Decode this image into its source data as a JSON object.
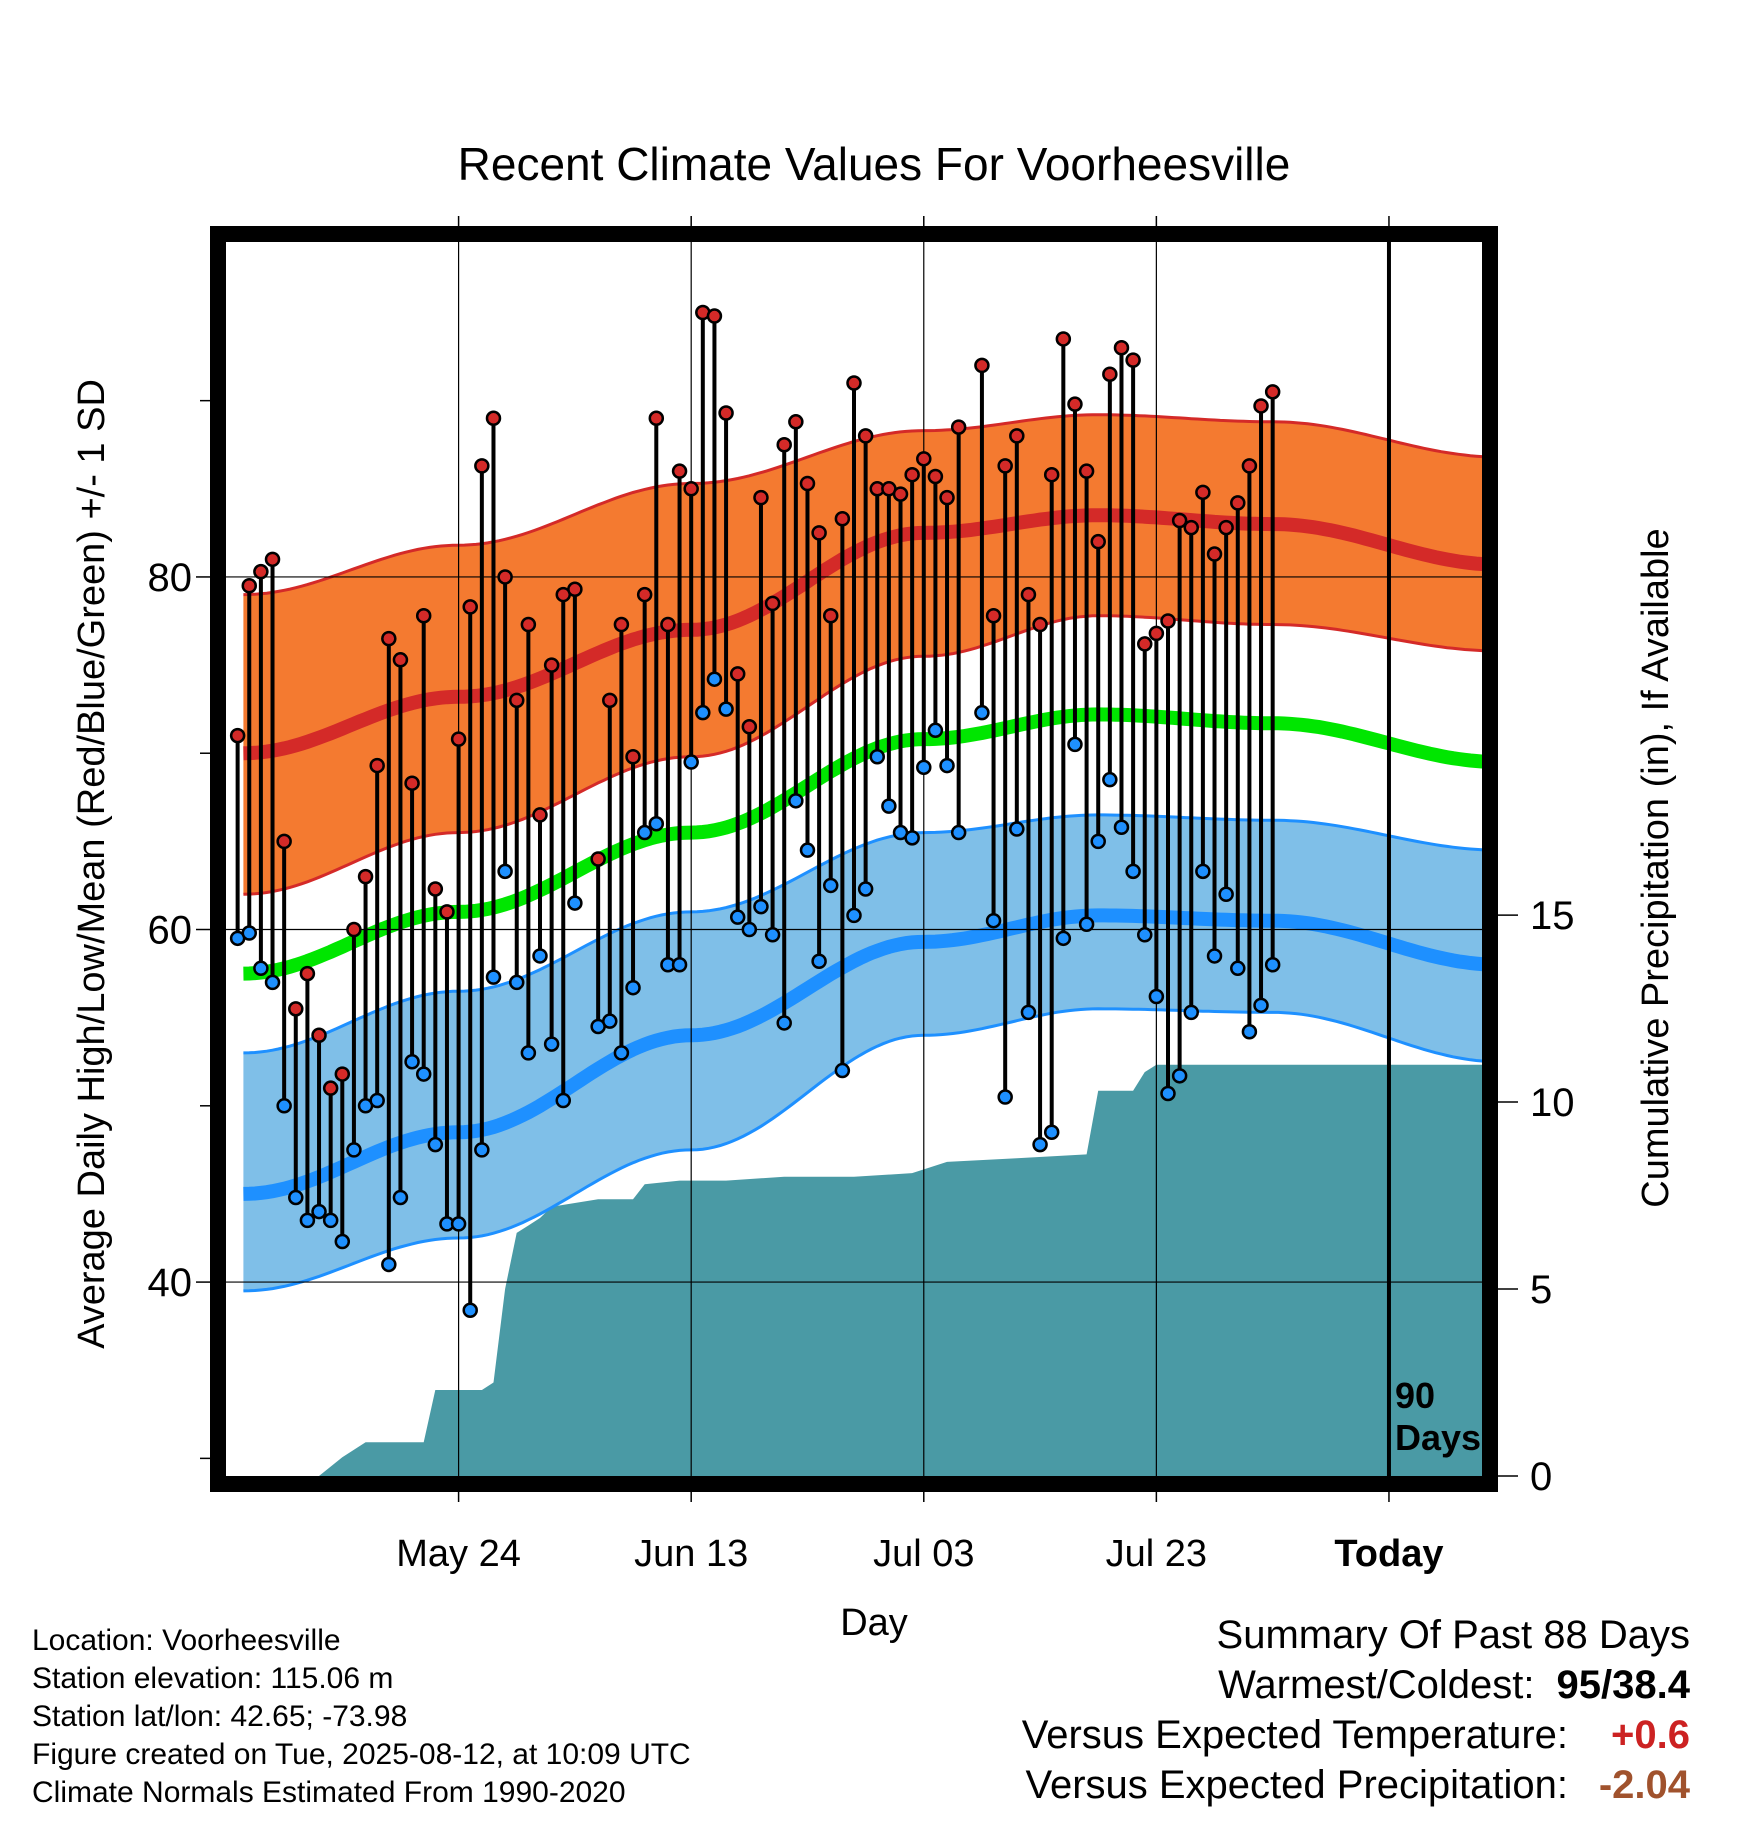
{
  "chart_data": {
    "type": "line",
    "title": "Recent Climate Values For Voorheesville",
    "xlabel": "Day",
    "ylabel_left": "Average Daily High/Low/Mean (Red/Blue/Green) +/- 1 SD",
    "ylabel_right": "Cumulative Precipitation (in), If Available",
    "y_left_range": [
      29,
      99
    ],
    "y_left_ticks": [
      "40",
      "60",
      "80"
    ],
    "y_right_range": [
      0,
      33
    ],
    "y_right_ticks": [
      "0",
      "5",
      "10",
      "15"
    ],
    "x_range": [
      -100,
      8
    ],
    "x_ticks": [
      {
        "label": "May 24",
        "day": -80
      },
      {
        "label": "Jun 13",
        "day": -60
      },
      {
        "label": "Jul 03",
        "day": -40
      },
      {
        "label": "Jul 23",
        "day": -20
      },
      {
        "label": "Today",
        "day": 0
      }
    ],
    "today_marker": {
      "day": 0,
      "label_line1": "90",
      "label_line2": "Days"
    },
    "normal_high": [
      {
        "day": -98.5,
        "value": 70.0
      },
      {
        "day": -80,
        "value": 73.2
      },
      {
        "day": -60,
        "value": 77.0
      },
      {
        "day": -40,
        "value": 82.5
      },
      {
        "day": -25,
        "value": 83.5
      },
      {
        "day": -10,
        "value": 83.0
      },
      {
        "day": 9.5,
        "value": 80.7
      }
    ],
    "normal_high_sd_upper": [
      {
        "day": -98.5,
        "value": 79.0
      },
      {
        "day": -80,
        "value": 81.8
      },
      {
        "day": -60,
        "value": 85.3
      },
      {
        "day": -40,
        "value": 88.3
      },
      {
        "day": -25,
        "value": 89.2
      },
      {
        "day": -10,
        "value": 88.8
      },
      {
        "day": 9.5,
        "value": 86.8
      }
    ],
    "normal_high_sd_lower": [
      {
        "day": -98.5,
        "value": 62.0
      },
      {
        "day": -80,
        "value": 65.5
      },
      {
        "day": -60,
        "value": 69.8
      },
      {
        "day": -40,
        "value": 75.5
      },
      {
        "day": -25,
        "value": 77.8
      },
      {
        "day": -10,
        "value": 77.3
      },
      {
        "day": 9.5,
        "value": 75.8
      }
    ],
    "normal_mean": [
      {
        "day": -98.5,
        "value": 57.5
      },
      {
        "day": -80,
        "value": 61.0
      },
      {
        "day": -60,
        "value": 65.5
      },
      {
        "day": -40,
        "value": 70.8
      },
      {
        "day": -25,
        "value": 72.2
      },
      {
        "day": -10,
        "value": 71.7
      },
      {
        "day": 9.5,
        "value": 69.5
      }
    ],
    "normal_low": [
      {
        "day": -98.5,
        "value": 45.0
      },
      {
        "day": -80,
        "value": 48.5
      },
      {
        "day": -60,
        "value": 54.0
      },
      {
        "day": -40,
        "value": 59.3
      },
      {
        "day": -25,
        "value": 60.8
      },
      {
        "day": -10,
        "value": 60.5
      },
      {
        "day": 9.5,
        "value": 58.0
      }
    ],
    "normal_low_sd_upper": [
      {
        "day": -98.5,
        "value": 53.0
      },
      {
        "day": -80,
        "value": 56.5
      },
      {
        "day": -60,
        "value": 61.0
      },
      {
        "day": -40,
        "value": 65.5
      },
      {
        "day": -25,
        "value": 66.5
      },
      {
        "day": -10,
        "value": 66.2
      },
      {
        "day": 9.5,
        "value": 64.5
      }
    ],
    "normal_low_sd_lower": [
      {
        "day": -98.5,
        "value": 39.5
      },
      {
        "day": -80,
        "value": 42.5
      },
      {
        "day": -60,
        "value": 47.5
      },
      {
        "day": -40,
        "value": 54.0
      },
      {
        "day": -25,
        "value": 55.5
      },
      {
        "day": -10,
        "value": 55.3
      },
      {
        "day": 9.5,
        "value": 52.5
      }
    ],
    "daily": [
      {
        "day": -99,
        "high": 71.0,
        "low": 59.5
      },
      {
        "day": -98,
        "high": 79.5,
        "low": 59.8
      },
      {
        "day": -97,
        "high": 80.3,
        "low": 57.8
      },
      {
        "day": -96,
        "high": 81.0,
        "low": 57.0
      },
      {
        "day": -95,
        "high": 65.0,
        "low": 50.0
      },
      {
        "day": -94,
        "high": 55.5,
        "low": 44.8
      },
      {
        "day": -93,
        "high": 57.5,
        "low": 43.5
      },
      {
        "day": -92,
        "high": 54.0,
        "low": 44.0
      },
      {
        "day": -91,
        "high": 51.0,
        "low": 43.5
      },
      {
        "day": -90,
        "high": 51.8,
        "low": 42.3
      },
      {
        "day": -89,
        "high": 60.0,
        "low": 47.5
      },
      {
        "day": -88,
        "high": 63.0,
        "low": 50.0
      },
      {
        "day": -87,
        "high": 69.3,
        "low": 50.3
      },
      {
        "day": -86,
        "high": 76.5,
        "low": 41.0
      },
      {
        "day": -85,
        "high": 75.3,
        "low": 44.8
      },
      {
        "day": -84,
        "high": 68.3,
        "low": 52.5
      },
      {
        "day": -83,
        "high": 77.8,
        "low": 51.8
      },
      {
        "day": -82,
        "high": 62.3,
        "low": 47.8
      },
      {
        "day": -81,
        "high": 61.0,
        "low": 43.3
      },
      {
        "day": -80,
        "high": 70.8,
        "low": 43.3
      },
      {
        "day": -79,
        "high": 78.3,
        "low": 38.4
      },
      {
        "day": -78,
        "high": 86.3,
        "low": 47.5
      },
      {
        "day": -77,
        "high": 89.0,
        "low": 57.3
      },
      {
        "day": -76,
        "high": 80.0,
        "low": 63.3
      },
      {
        "day": -75,
        "high": 73.0,
        "low": 57.0
      },
      {
        "day": -74,
        "high": 77.3,
        "low": 53.0
      },
      {
        "day": -73,
        "high": 66.5,
        "low": 58.5
      },
      {
        "day": -72,
        "high": 75.0,
        "low": 53.5
      },
      {
        "day": -71,
        "high": 79.0,
        "low": 50.3
      },
      {
        "day": -70,
        "high": 79.3,
        "low": 61.5
      },
      {
        "day": -68,
        "high": 64.0,
        "low": 54.5
      },
      {
        "day": -67,
        "high": 73.0,
        "low": 54.8
      },
      {
        "day": -66,
        "high": 77.3,
        "low": 53.0
      },
      {
        "day": -65,
        "high": 69.8,
        "low": 56.7
      },
      {
        "day": -64,
        "high": 79.0,
        "low": 65.5
      },
      {
        "day": -63,
        "high": 89.0,
        "low": 66.0
      },
      {
        "day": -62,
        "high": 77.3,
        "low": 58.0
      },
      {
        "day": -61,
        "high": 86.0,
        "low": 58.0
      },
      {
        "day": -60,
        "high": 85.0,
        "low": 69.5
      },
      {
        "day": -59,
        "high": 95.0,
        "low": 72.3
      },
      {
        "day": -58,
        "high": 94.8,
        "low": 74.2
      },
      {
        "day": -57,
        "high": 89.3,
        "low": 72.5
      },
      {
        "day": -56,
        "high": 74.5,
        "low": 60.7
      },
      {
        "day": -55,
        "high": 71.5,
        "low": 60.0
      },
      {
        "day": -54,
        "high": 84.5,
        "low": 61.3
      },
      {
        "day": -53,
        "high": 78.5,
        "low": 59.7
      },
      {
        "day": -52,
        "high": 87.5,
        "low": 54.7
      },
      {
        "day": -51,
        "high": 88.8,
        "low": 67.3
      },
      {
        "day": -50,
        "high": 85.3,
        "low": 64.5
      },
      {
        "day": -49,
        "high": 82.5,
        "low": 58.2
      },
      {
        "day": -48,
        "high": 77.8,
        "low": 62.5
      },
      {
        "day": -47,
        "high": 83.3,
        "low": 52.0
      },
      {
        "day": -46,
        "high": 91.0,
        "low": 60.8
      },
      {
        "day": -45,
        "high": 88.0,
        "low": 62.3
      },
      {
        "day": -44,
        "high": 85.0,
        "low": 69.8
      },
      {
        "day": -43,
        "high": 85.0,
        "low": 67.0
      },
      {
        "day": -42,
        "high": 84.7,
        "low": 65.5
      },
      {
        "day": -41,
        "high": 85.8,
        "low": 65.2
      },
      {
        "day": -40,
        "high": 86.7,
        "low": 69.2
      },
      {
        "day": -39,
        "high": 85.7,
        "low": 71.3
      },
      {
        "day": -38,
        "high": 84.5,
        "low": 69.3
      },
      {
        "day": -37,
        "high": 88.5,
        "low": 65.5
      },
      {
        "day": -35,
        "high": 92.0,
        "low": 72.3
      },
      {
        "day": -34,
        "high": 77.8,
        "low": 60.5
      },
      {
        "day": -33,
        "high": 86.3,
        "low": 50.5
      },
      {
        "day": -32,
        "high": 88.0,
        "low": 65.7
      },
      {
        "day": -31,
        "high": 79.0,
        "low": 55.3
      },
      {
        "day": -30,
        "high": 77.3,
        "low": 47.8
      },
      {
        "day": -29,
        "high": 85.8,
        "low": 48.5
      },
      {
        "day": -28,
        "high": 93.5,
        "low": 59.5
      },
      {
        "day": -27,
        "high": 89.8,
        "low": 70.5
      },
      {
        "day": -26,
        "high": 86.0,
        "low": 60.3
      },
      {
        "day": -25,
        "high": 82.0,
        "low": 65.0
      },
      {
        "day": -24,
        "high": 91.5,
        "low": 68.5
      },
      {
        "day": -23,
        "high": 93.0,
        "low": 65.8
      },
      {
        "day": -22,
        "high": 92.3,
        "low": 63.3
      },
      {
        "day": -21,
        "high": 76.2,
        "low": 59.7
      },
      {
        "day": -20,
        "high": 76.8,
        "low": 56.2
      },
      {
        "day": -19,
        "high": 77.5,
        "low": 50.7
      },
      {
        "day": -18,
        "high": 83.2,
        "low": 51.7
      },
      {
        "day": -17,
        "high": 82.8,
        "low": 55.3
      },
      {
        "day": -16,
        "high": 84.8,
        "low": 63.3
      },
      {
        "day": -15,
        "high": 81.3,
        "low": 58.5
      },
      {
        "day": -14,
        "high": 82.8,
        "low": 62.0
      },
      {
        "day": -13,
        "high": 84.2,
        "low": 57.8
      },
      {
        "day": -12,
        "high": 86.3,
        "low": 54.2
      },
      {
        "day": -11,
        "high": 89.7,
        "low": 55.7
      },
      {
        "day": -10,
        "high": 90.5,
        "low": 58.0
      }
    ],
    "cumulative_precip": [
      {
        "day": -99,
        "value": 0
      },
      {
        "day": -92,
        "value": 0
      },
      {
        "day": -90,
        "value": 0.5
      },
      {
        "day": -88,
        "value": 0.9
      },
      {
        "day": -83,
        "value": 0.9
      },
      {
        "day": -82,
        "value": 2.3
      },
      {
        "day": -78,
        "value": 2.3
      },
      {
        "day": -77,
        "value": 2.5
      },
      {
        "day": -76,
        "value": 5.0
      },
      {
        "day": -75,
        "value": 6.5
      },
      {
        "day": -74,
        "value": 6.7
      },
      {
        "day": -73,
        "value": 6.9
      },
      {
        "day": -72,
        "value": 7.2
      },
      {
        "day": -68,
        "value": 7.4
      },
      {
        "day": -65,
        "value": 7.4
      },
      {
        "day": -64,
        "value": 7.8
      },
      {
        "day": -61,
        "value": 7.9
      },
      {
        "day": -57,
        "value": 7.9
      },
      {
        "day": -52,
        "value": 8.0
      },
      {
        "day": -46,
        "value": 8.0
      },
      {
        "day": -41,
        "value": 8.1
      },
      {
        "day": -40,
        "value": 8.2
      },
      {
        "day": -38,
        "value": 8.4
      },
      {
        "day": -32,
        "value": 8.5
      },
      {
        "day": -26,
        "value": 8.6
      },
      {
        "day": -25,
        "value": 10.3
      },
      {
        "day": -22,
        "value": 10.3
      },
      {
        "day": -21,
        "value": 10.8
      },
      {
        "day": -20,
        "value": 11.0
      },
      {
        "day": -10,
        "value": 11.0
      },
      {
        "day": 9.5,
        "value": 11.0
      }
    ]
  },
  "footer": {
    "location": "Location: Voorheesville",
    "elevation": "Station elevation: 115.06 m",
    "latlon": "Station lat/lon: 42.65; -73.98",
    "created": "Figure created on Tue, 2025-08-12, at 10:09 UTC",
    "normals": "Climate Normals Estimated From 1990-2020"
  },
  "summary": {
    "title": "Summary Of Past 88 Days",
    "warmest_label": "Warmest/Coldest:",
    "warmest_value": "95/38.4",
    "temp_label": "Versus Expected Temperature:",
    "temp_value": "+0.6",
    "temp_color": "#cc2222",
    "precip_label": "Versus Expected Precipitation:",
    "precip_value": "-2.04",
    "precip_color": "#a0522d"
  },
  "colors": {
    "high_band": "#f47a30",
    "high_line": "#d42a28",
    "mean_line": "#00e600",
    "low_band": "#7fbfe8",
    "low_line": "#1e90ff",
    "precip_fill": "#4a9aa5",
    "high_dot": "#d42a28",
    "low_dot": "#1e90ff"
  }
}
